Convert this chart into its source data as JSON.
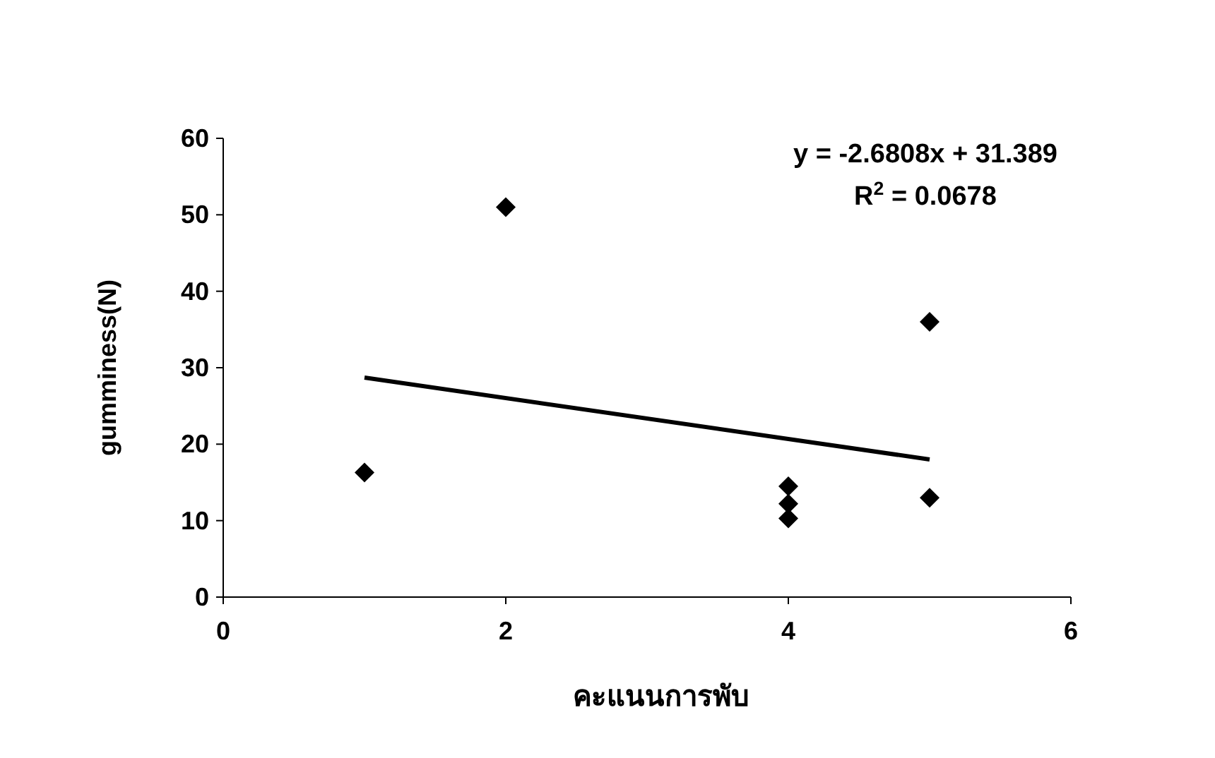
{
  "chart_data": {
    "type": "scatter",
    "xlabel": "คะแนนการพับ",
    "ylabel": "gumminess(N)",
    "xlim": [
      0,
      6
    ],
    "xticks": [
      0,
      2,
      4,
      6
    ],
    "ylim": [
      0,
      60
    ],
    "yticks": [
      0,
      10,
      20,
      30,
      40,
      50,
      60
    ],
    "grid": false,
    "series": [
      {
        "color": "#000000",
        "marker": "diamond",
        "x": [
          1,
          2,
          4,
          4,
          4,
          5,
          5
        ],
        "values": [
          16.3,
          51,
          14.5,
          12.2,
          10.3,
          36,
          13
        ]
      },
      {
        "type": "line",
        "color": "#000000",
        "marker": "none",
        "line_style": "solid",
        "x": [
          1,
          5
        ],
        "values": [
          28.7,
          18.0
        ]
      }
    ],
    "annotations": [
      "y = -2.6808x + 31.389",
      "R$^{2}$ = 0.0678"
    ]
  }
}
